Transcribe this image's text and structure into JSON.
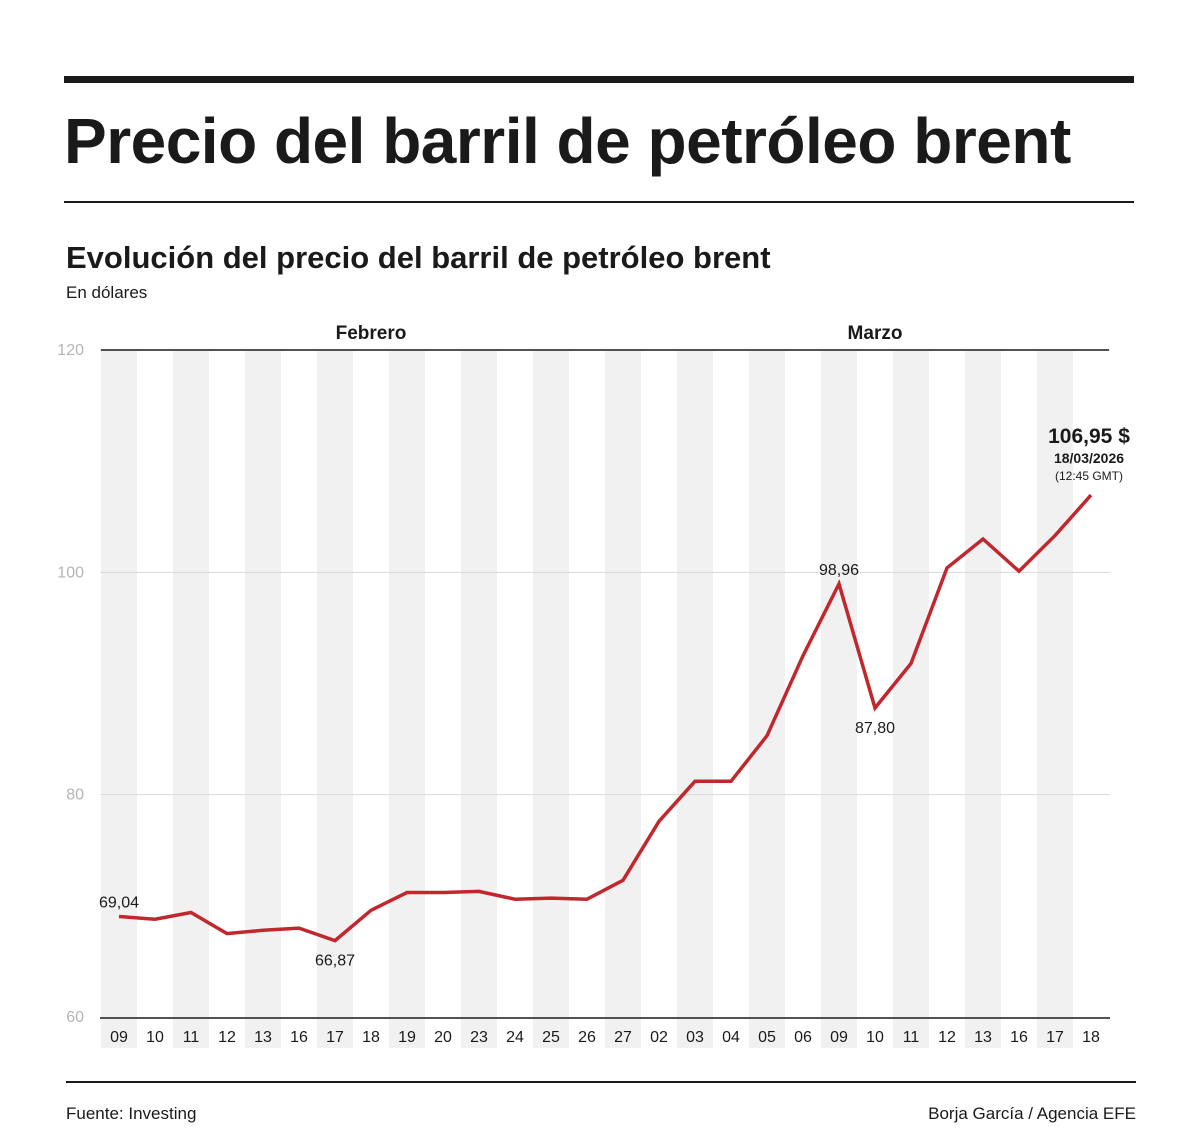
{
  "title": "Precio del barril de petróleo brent",
  "subtitle": "Evolución del precio del barril de petróleo brent",
  "unit": "En dólares",
  "source": "Fuente: Investing",
  "credit": "Borja García / Agencia EFE",
  "chart_data": {
    "type": "line",
    "title": "Evolución del precio del barril de petróleo brent",
    "ylabel": "En dólares",
    "ylim": [
      60,
      120
    ],
    "yticks": [
      60,
      80,
      100,
      120
    ],
    "grid": true,
    "colors": {
      "line": "#c1272d",
      "stripe": "#f1f1f1",
      "grid": "#d8d8d8",
      "ytick": "#b5b5b5"
    },
    "months": [
      {
        "label": "Febrero",
        "from": 0,
        "to": 14
      },
      {
        "label": "Marzo",
        "from": 15,
        "to": 27
      }
    ],
    "categories": [
      "09",
      "10",
      "11",
      "12",
      "13",
      "16",
      "17",
      "18",
      "19",
      "20",
      "23",
      "24",
      "25",
      "26",
      "27",
      "02",
      "03",
      "04",
      "05",
      "06",
      "09",
      "10",
      "11",
      "12",
      "13",
      "16",
      "17",
      "18"
    ],
    "values": [
      69.04,
      68.8,
      69.4,
      67.5,
      67.8,
      68.0,
      66.87,
      69.6,
      71.2,
      71.2,
      71.3,
      70.6,
      70.7,
      70.6,
      72.3,
      77.6,
      81.2,
      81.2,
      85.3,
      92.5,
      98.96,
      87.8,
      91.8,
      100.4,
      103.0,
      100.1,
      103.3,
      106.95
    ],
    "annotations": [
      {
        "index": 0,
        "text": "69,04",
        "pos": "above"
      },
      {
        "index": 6,
        "text": "66,87",
        "pos": "below"
      },
      {
        "index": 20,
        "text": "98,96",
        "pos": "above"
      },
      {
        "index": 21,
        "text": "87,80",
        "pos": "below"
      }
    ],
    "last_value": {
      "value": "106,95 $",
      "date": "18/03/2026",
      "time": "(12:45 GMT)"
    }
  }
}
